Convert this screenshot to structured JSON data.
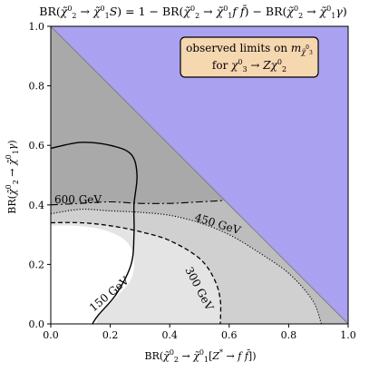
{
  "chart_data": {
    "type": "contour",
    "title": "BR(χ̃⁰₂ → χ̃⁰₁S) = 1 − BR(χ̃⁰₂ → χ̃⁰₁ff̄) − BR(χ̃⁰₂ → χ̃⁰₁γ)",
    "xlabel": "BR(χ̃⁰₂ → χ̃⁰₁[Z* → ff̄])",
    "ylabel": "BR(χ̃⁰₂ → χ̃⁰₁γ)",
    "xlim": [
      0.0,
      1.0
    ],
    "ylim": [
      0.0,
      1.0
    ],
    "xticks": [
      "0.0",
      "0.2",
      "0.4",
      "0.6",
      "0.8",
      "1.0"
    ],
    "yticks": [
      "0.0",
      "0.2",
      "0.4",
      "0.6",
      "0.8",
      "1.0"
    ],
    "legend_box": {
      "line1": "observed limits on m_χ̃⁰₃",
      "line2": "for χ⁰₃ → Zχ⁰₂"
    },
    "colors": {
      "unphysical": "#aaa2f0",
      "region_gt600": "#a9a9a9",
      "region_450_600": "#bdbdbd",
      "region_300_450": "#d0d0d0",
      "region_150_300": "#e4e4e4",
      "region_lt150": "#ffffff",
      "legend_fill": "#f5d7b0"
    },
    "contours": [
      {
        "label": "600 GeV",
        "style": "dashdot",
        "points": [
          [
            0.0,
            0.4
          ],
          [
            0.1,
            0.405
          ],
          [
            0.2,
            0.41
          ],
          [
            0.3,
            0.405
          ],
          [
            0.4,
            0.405
          ],
          [
            0.5,
            0.41
          ],
          [
            0.585,
            0.415
          ]
        ]
      },
      {
        "label": "450 GeV",
        "style": "dotted",
        "points": [
          [
            0.0,
            0.37
          ],
          [
            0.1,
            0.385
          ],
          [
            0.2,
            0.38
          ],
          [
            0.3,
            0.375
          ],
          [
            0.4,
            0.365
          ],
          [
            0.5,
            0.34
          ],
          [
            0.6,
            0.3
          ],
          [
            0.7,
            0.24
          ],
          [
            0.8,
            0.17
          ],
          [
            0.88,
            0.08
          ],
          [
            0.91,
            0.0
          ]
        ]
      },
      {
        "label": "300 GeV",
        "style": "dashed",
        "points": [
          [
            0.0,
            0.34
          ],
          [
            0.1,
            0.34
          ],
          [
            0.2,
            0.33
          ],
          [
            0.3,
            0.31
          ],
          [
            0.4,
            0.28
          ],
          [
            0.5,
            0.22
          ],
          [
            0.55,
            0.15
          ],
          [
            0.57,
            0.08
          ],
          [
            0.57,
            0.0
          ]
        ]
      },
      {
        "label": "150 GeV",
        "style": "solid",
        "points": [
          [
            0.0,
            0.59
          ],
          [
            0.1,
            0.61
          ],
          [
            0.2,
            0.6
          ],
          [
            0.27,
            0.57
          ],
          [
            0.29,
            0.5
          ],
          [
            0.28,
            0.4
          ],
          [
            0.28,
            0.3
          ],
          [
            0.27,
            0.2
          ],
          [
            0.22,
            0.1
          ],
          [
            0.16,
            0.03
          ],
          [
            0.14,
            0.0
          ]
        ]
      }
    ]
  }
}
